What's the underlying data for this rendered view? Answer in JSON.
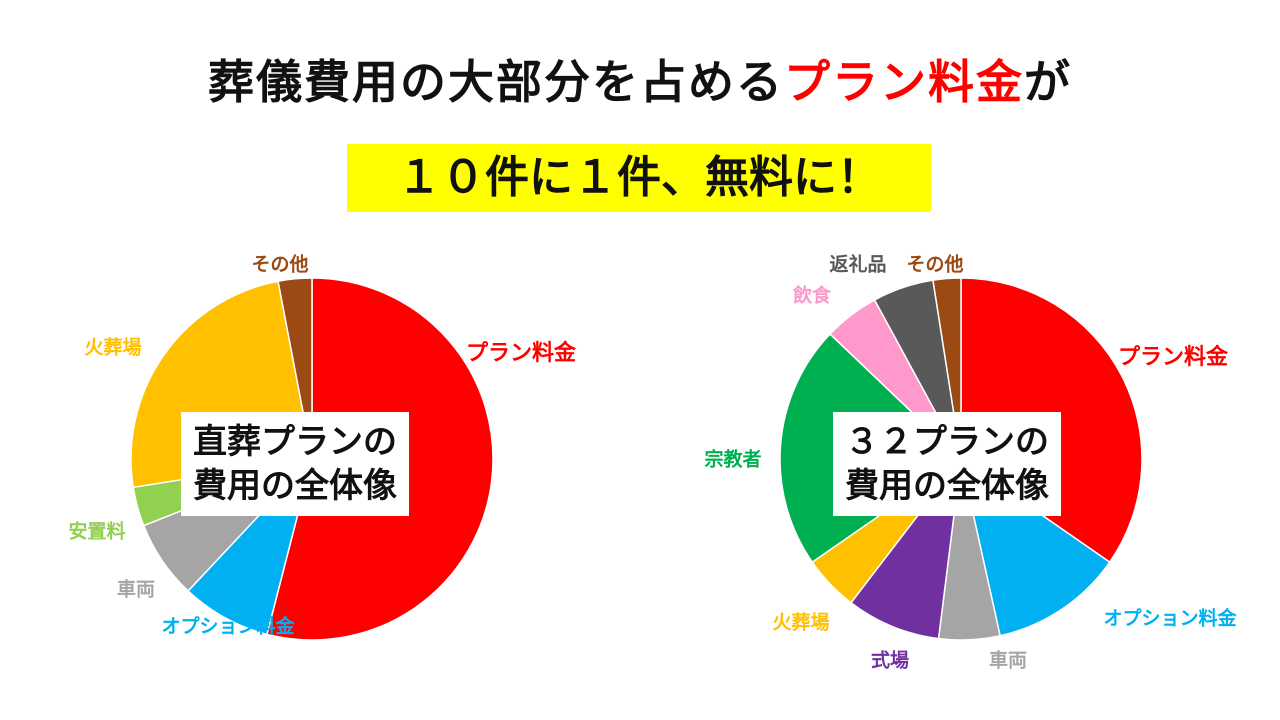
{
  "headline": {
    "main": "葬儀費用の大部分を占める",
    "accent": "プラン料金",
    "tail": "が"
  },
  "subhead": "１０件に１件、無料に！",
  "chart_data": [
    {
      "type": "pie",
      "center_lines": [
        "直葬プランの",
        "費用の全体像"
      ],
      "slices": [
        {
          "label": "プラン料金",
          "value": 54,
          "color": "#ff0000"
        },
        {
          "label": "オプション料金",
          "value": 8,
          "color": "#00b0f0"
        },
        {
          "label": "車両",
          "value": 7,
          "color": "#a5a5a5"
        },
        {
          "label": "安置料",
          "value": 3.5,
          "color": "#92d050"
        },
        {
          "label": "火葬場",
          "value": 24.5,
          "color": "#ffc000"
        },
        {
          "label": "その他",
          "value": 3,
          "color": "#9c4a14"
        }
      ]
    },
    {
      "type": "pie",
      "center_lines": [
        "３２プランの",
        "費用の全体像"
      ],
      "slices": [
        {
          "label": "プラン料金",
          "value": 35,
          "color": "#ff0000"
        },
        {
          "label": "オプション料金",
          "value": 12,
          "color": "#00b0f0"
        },
        {
          "label": "車両",
          "value": 5.5,
          "color": "#a5a5a5"
        },
        {
          "label": "式場",
          "value": 8.5,
          "color": "#7030a0"
        },
        {
          "label": "火葬場",
          "value": 5,
          "color": "#ffc000"
        },
        {
          "label": "宗教者",
          "value": 22,
          "color": "#00b050"
        },
        {
          "label": "飲食",
          "value": 5,
          "color": "#ff99cc"
        },
        {
          "label": "返礼品",
          "value": 5.5,
          "color": "#595959"
        },
        {
          "label": "その他",
          "value": 2.5,
          "color": "#9c4a14"
        }
      ]
    }
  ]
}
